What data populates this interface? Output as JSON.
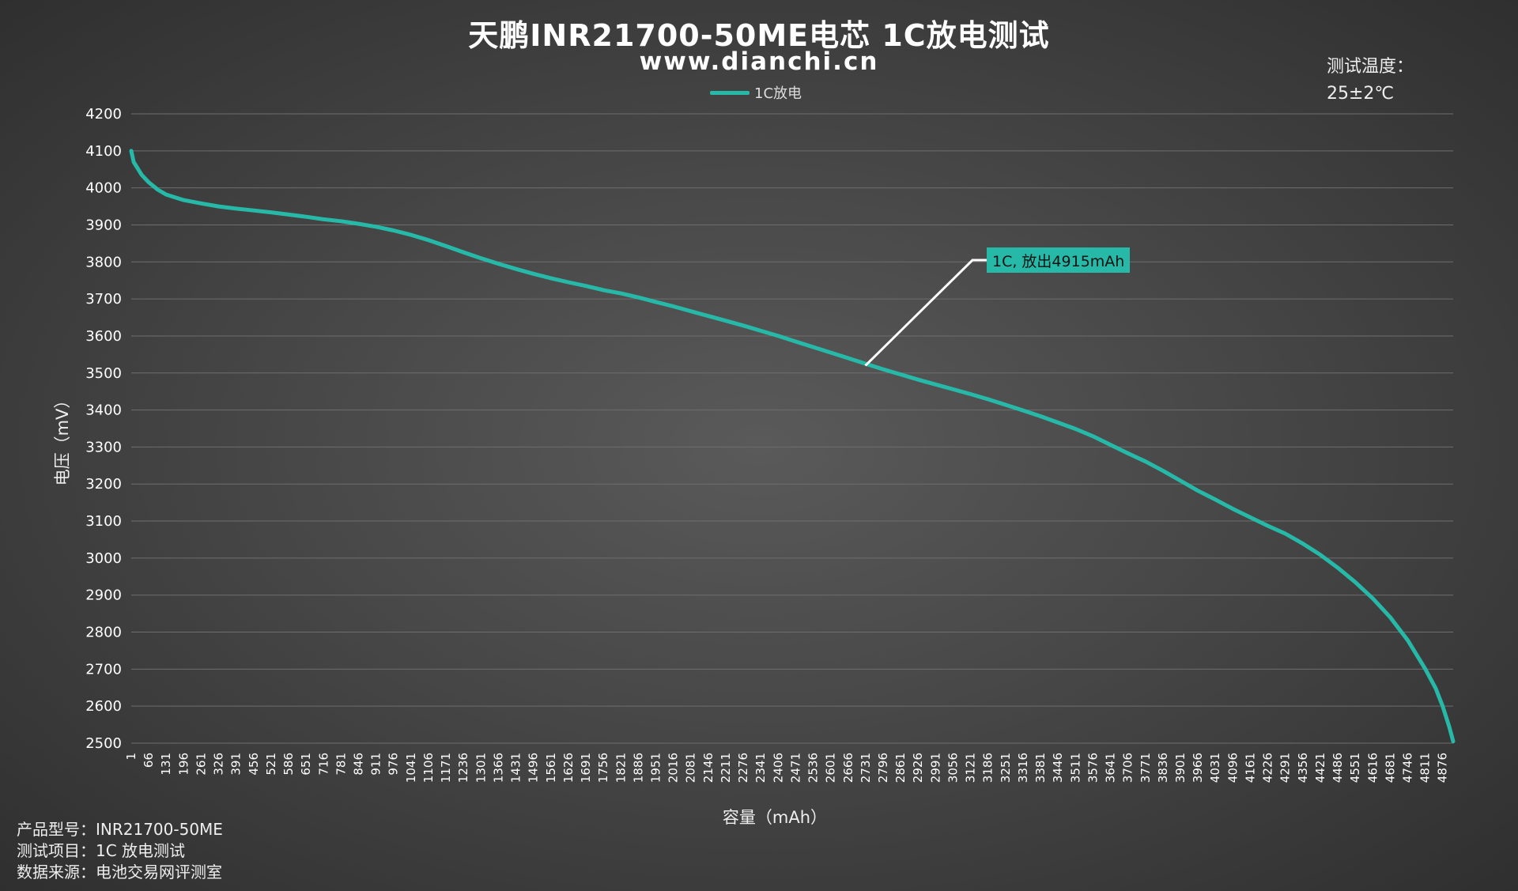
{
  "title": "天鹏INR21700-50ME电芯 1C放电测试",
  "subtitle": "www.dianchi.cn",
  "legend_label": "1C放电",
  "temp_label": "测试温度：",
  "temp_value": "25±2℃",
  "info_lines": [
    "产品型号：INR21700-50ME",
    "测试项目：1C 放电测试",
    "数据来源：电池交易网评测室"
  ],
  "annotation": "1C, 放出4915mAh",
  "colors": {
    "series": "#27b9a8",
    "grid": "#6e6e6e",
    "leader": "#ffffff"
  },
  "chart_data": {
    "type": "line",
    "title": "天鹏INR21700-50ME电芯 1C放电测试",
    "xlabel": "容量（mAh）",
    "ylabel": "电压（mV）",
    "ylim": [
      2500,
      4200
    ],
    "y_ticks": [
      2500,
      2600,
      2700,
      2800,
      2900,
      3000,
      3100,
      3200,
      3300,
      3400,
      3500,
      3600,
      3700,
      3800,
      3900,
      4000,
      4100,
      4200
    ],
    "x_ticks": [
      "1",
      "66",
      "131",
      "196",
      "261",
      "326",
      "391",
      "456",
      "521",
      "586",
      "651",
      "716",
      "781",
      "846",
      "911",
      "976",
      "1041",
      "1106",
      "1171",
      "1236",
      "1301",
      "1366",
      "1431",
      "1496",
      "1561",
      "1626",
      "1691",
      "1756",
      "1821",
      "1886",
      "1951",
      "2016",
      "2081",
      "2146",
      "2211",
      "2276",
      "2341",
      "2406",
      "2471",
      "2536",
      "2601",
      "2666",
      "2731",
      "2796",
      "2861",
      "2926",
      "2991",
      "3056",
      "3121",
      "3186",
      "3251",
      "3316",
      "3381",
      "3446",
      "3511",
      "3576",
      "3641",
      "3706",
      "3771",
      "3836",
      "3901",
      "3966",
      "4031",
      "4096",
      "4161",
      "4226",
      "4291",
      "4356",
      "4421",
      "4486",
      "4551",
      "4616",
      "4681",
      "4746",
      "4811",
      "4876"
    ],
    "xlim": [
      1,
      4915
    ],
    "grid": true,
    "legend_position": "top-center",
    "annotation_point": {
      "x": 2730,
      "y": 3520
    },
    "series": [
      {
        "name": "1C放电",
        "x": [
          1,
          10,
          40,
          66,
          100,
          131,
          196,
          261,
          326,
          391,
          456,
          521,
          586,
          651,
          716,
          781,
          846,
          911,
          976,
          1041,
          1106,
          1171,
          1236,
          1301,
          1366,
          1431,
          1496,
          1561,
          1626,
          1691,
          1756,
          1821,
          1886,
          1951,
          2016,
          2081,
          2146,
          2211,
          2276,
          2341,
          2406,
          2471,
          2536,
          2601,
          2666,
          2731,
          2796,
          2861,
          2926,
          2991,
          3056,
          3121,
          3186,
          3251,
          3316,
          3381,
          3446,
          3511,
          3576,
          3641,
          3706,
          3771,
          3836,
          3901,
          3966,
          4031,
          4096,
          4161,
          4226,
          4291,
          4356,
          4421,
          4486,
          4551,
          4616,
          4681,
          4746,
          4811,
          4850,
          4876,
          4900,
          4915
        ],
        "y": [
          4100,
          4070,
          4035,
          4015,
          3995,
          3982,
          3967,
          3958,
          3950,
          3944,
          3939,
          3934,
          3928,
          3922,
          3915,
          3910,
          3903,
          3895,
          3885,
          3873,
          3859,
          3843,
          3826,
          3810,
          3795,
          3781,
          3768,
          3756,
          3745,
          3735,
          3724,
          3715,
          3704,
          3692,
          3680,
          3667,
          3654,
          3641,
          3628,
          3614,
          3600,
          3585,
          3570,
          3555,
          3540,
          3525,
          3510,
          3496,
          3482,
          3469,
          3456,
          3443,
          3429,
          3414,
          3399,
          3383,
          3366,
          3349,
          3329,
          3306,
          3283,
          3261,
          3236,
          3209,
          3182,
          3158,
          3133,
          3110,
          3087,
          3066,
          3039,
          3009,
          2974,
          2935,
          2891,
          2840,
          2778,
          2701,
          2648,
          2600,
          2545,
          2505
        ]
      }
    ]
  }
}
